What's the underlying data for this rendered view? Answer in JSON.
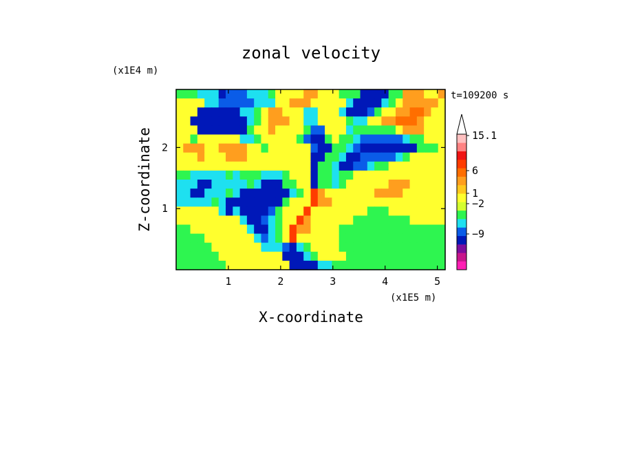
{
  "chart_data": {
    "type": "heatmap",
    "title": "zonal velocity",
    "xlabel": "X-coordinate",
    "ylabel": "Z-coordinate",
    "x_units": "(x1E5 m)",
    "y_units": "(x1E4 m)",
    "time_label": "t=109200 s",
    "xlim": [
      0,
      5.15
    ],
    "ylim": [
      0,
      2.95
    ],
    "x_ticks": [
      "1",
      "2",
      "3",
      "4",
      "5"
    ],
    "x_tick_values": [
      1,
      2,
      3,
      4,
      5
    ],
    "y_ticks": [
      "1",
      "2"
    ],
    "y_tick_values": [
      1,
      2
    ],
    "colorbar": {
      "colors": [
        "#ff1fb4",
        "#c8168c",
        "#7d0d9e",
        "#0018b8",
        "#0a5ce8",
        "#1ee0f0",
        "#2ef550",
        "#d4ff30",
        "#ffff2e",
        "#ffc81e",
        "#ff9e1e",
        "#ff6e00",
        "#ff3c00",
        "#f01414",
        "#ff8282",
        "#ffc0c0"
      ],
      "labels": [
        "15.1",
        "6",
        "1",
        "−2",
        "−9"
      ],
      "label_levels": [
        15.1,
        6,
        1,
        -2,
        -9
      ],
      "extend": "max"
    },
    "field_rows": [
      "gggcccBbbbcccgyyyyooyyygggBBBBggoooyyo",
      "yyyyccbbbbbcccyyoooyyyyycBBBBcgyoooooy",
      "yyyBBBBBBccgyooyyyccyyycBBBbgyyooOOoyy",
      "yyBBBBBBBBcgyoooyyccyyyygccyyooOOOoyyy",
      "yyyBBBBBBBgyyoyyyygbbyyycggggggyoooyyy",
      "yygyyyyyyccgyyyyygbBBgyggcbbbbbbcggyyy",
      "yoooyyooooyygyyyyyybBBggcbBBBBBBBBgggy",
      "yyyoyyyoooyyyyyyyyyBBggcBBbbbbbcgyyyyy",
      "yyyyyyyyyyyyyyyyyyyBggcBBbbcggyyyyyyyy",
      "ggcccccgcgggcccgyyyBggcggyyyyyyyyyyyyy",
      "cccBBcccccgcBBBggyyBggcgyyyyyyoooyyyyy",
      "ccBBcccgcBBBBBBBcgyRoyyyyyyyooooyyyyyy",
      "cccccgcBBBBBBBBgyyyRooyyyyyyyyyyyyyyyy",
      "yyyyyycBcBBBBbgyyyRyyyyyyyygggyyyyyyyy",
      "yyyyyyyyycBBbcgyyRoyyyyyyggggggggyyyyy",
      "ggyyyyyyyycBBcgyRooyyyyggggggggggggggg",
      "ggggyyyyyyycbcgyRyyyyyyggggggggggggggg",
      "gggggyyyyyyycccbBcgyyyyggggggggggggggg",
      "ggggggyyyyyyyyyBBBcgyyyygggggggggggggg",
      "gggggggyyyyyyyyyBBBBccgggggggggggggggg"
    ]
  }
}
